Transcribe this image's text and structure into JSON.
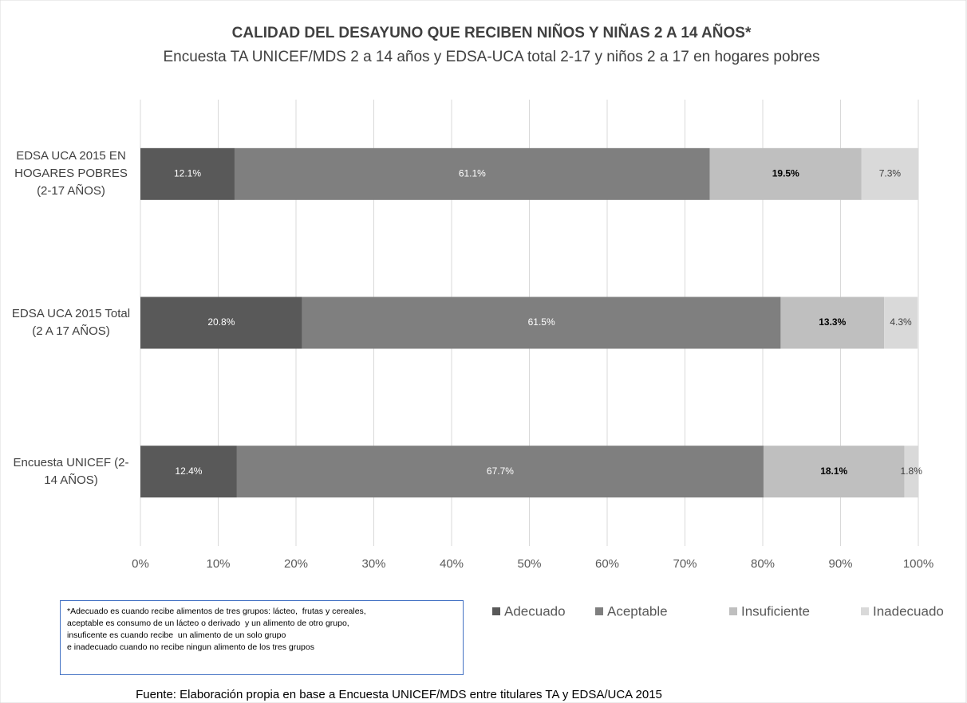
{
  "chart_data": {
    "type": "stacked_bar_horizontal",
    "title": "CALIDAD DEL DESAYUNO QUE RECIBEN NIÑOS Y NIÑAS 2 A 14 AÑOS*",
    "subtitle": "Encuesta TA UNICEF/MDS 2 a 14 años y EDSA-UCA total 2-17 y niños 2 a 17 en hogares pobres",
    "categories": [
      "EDSA UCA 2015 EN HOGARES POBRES (2-17 AÑOS)",
      "EDSA UCA 2015 Total (2 A 17 AÑOS)",
      "Encuesta UNICEF (2-14 AÑOS)"
    ],
    "series": [
      {
        "name": "Adecuado",
        "color": "#595959",
        "values": [
          12.1,
          20.8,
          12.4
        ],
        "value_labels": [
          "12.1%",
          "20.8%",
          "12.4%"
        ]
      },
      {
        "name": "Aceptable",
        "color": "#7f7f7f",
        "values": [
          61.1,
          61.5,
          67.7
        ],
        "value_labels": [
          "61.1%",
          "61.5%",
          "67.7%"
        ]
      },
      {
        "name": "Insuficiente",
        "color": "#bfbfbf",
        "values": [
          19.5,
          13.3,
          18.1
        ],
        "value_labels": [
          "19.5%",
          "13.3%",
          "18.1%"
        ]
      },
      {
        "name": "Inadecuado",
        "color": "#d9d9d9",
        "values": [
          7.3,
          4.3,
          1.8
        ],
        "value_labels": [
          "7.3%",
          "4.3%",
          "1.8%"
        ]
      }
    ],
    "xlim": [
      0,
      100
    ],
    "xticks": [
      {
        "value": 0,
        "label": "0%"
      },
      {
        "value": 10,
        "label": "10%"
      },
      {
        "value": 20,
        "label": "20%"
      },
      {
        "value": 30,
        "label": "30%"
      },
      {
        "value": 40,
        "label": "40%"
      },
      {
        "value": 50,
        "label": "50%"
      },
      {
        "value": 60,
        "label": "60%"
      },
      {
        "value": 70,
        "label": "70%"
      },
      {
        "value": 80,
        "label": "80%"
      },
      {
        "value": 90,
        "label": "90%"
      },
      {
        "value": 100,
        "label": "100%"
      }
    ],
    "grid": true,
    "legend": "bottom-right",
    "note": [
      "*Adecuado es cuando recibe alimentos de tres grupos: lácteo,  frutas y cereales,",
      "aceptable es consumo de un lácteo o derivado  y un alimento de otro grupo,",
      "insuficente es cuando recibe  un alimento de un solo grupo",
      "e inadecuado cuando no recibe ningun alimento de los tres grupos"
    ],
    "source": "Fuente: Elaboración propia en base a Encuesta UNICEF/MDS entre titulares TA y EDSA/UCA 2015"
  }
}
